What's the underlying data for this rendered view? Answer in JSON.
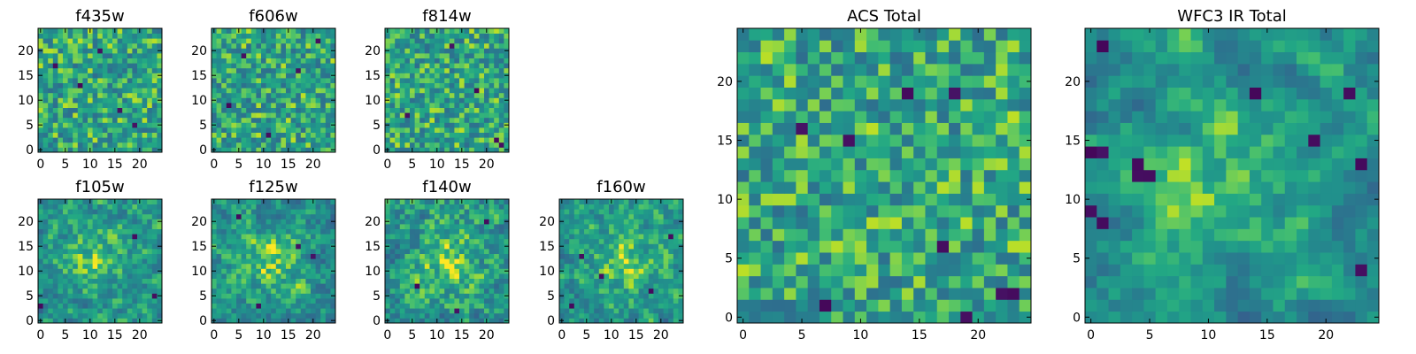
{
  "chart_data": [
    {
      "type": "heatmap",
      "title": "f435w",
      "xticks": [
        "0",
        "5",
        "10",
        "15",
        "20"
      ],
      "yticks": [
        "0",
        "5",
        "10",
        "15",
        "20"
      ],
      "xlim": [
        0,
        24
      ],
      "ylim": [
        0,
        24
      ],
      "colormap": "viridis",
      "seed": 11,
      "smooth": 0,
      "dark_spots": [
        [
          12,
          20
        ],
        [
          16,
          8
        ],
        [
          8,
          13
        ],
        [
          19,
          5
        ],
        [
          3,
          17
        ]
      ]
    },
    {
      "type": "heatmap",
      "title": "f606w",
      "xticks": [
        "0",
        "5",
        "10",
        "15",
        "20"
      ],
      "yticks": [
        "0",
        "5",
        "10",
        "15",
        "20"
      ],
      "xlim": [
        0,
        24
      ],
      "ylim": [
        0,
        24
      ],
      "colormap": "viridis",
      "seed": 23,
      "smooth": 0,
      "dark_spots": [
        [
          3,
          9
        ],
        [
          11,
          3
        ],
        [
          17,
          16
        ],
        [
          21,
          22
        ],
        [
          6,
          19
        ]
      ]
    },
    {
      "type": "heatmap",
      "title": "f814w",
      "xticks": [
        "0",
        "5",
        "10",
        "15",
        "20"
      ],
      "yticks": [
        "0",
        "5",
        "10",
        "15",
        "20"
      ],
      "xlim": [
        0,
        24
      ],
      "ylim": [
        0,
        24
      ],
      "colormap": "viridis",
      "seed": 37,
      "smooth": 0,
      "dark_spots": [
        [
          22,
          2
        ],
        [
          23,
          1
        ],
        [
          13,
          21
        ],
        [
          4,
          7
        ],
        [
          18,
          12
        ]
      ]
    },
    {
      "type": "heatmap",
      "title": "f105w",
      "xticks": [
        "0",
        "5",
        "10",
        "15",
        "20"
      ],
      "yticks": [
        "0",
        "5",
        "10",
        "15",
        "20"
      ],
      "xlim": [
        0,
        24
      ],
      "ylim": [
        0,
        24
      ],
      "colormap": "viridis",
      "seed": 41,
      "smooth": 1,
      "center": [
        11,
        13
      ],
      "dark_spots": [
        [
          23,
          5
        ],
        [
          0,
          3
        ],
        [
          19,
          17
        ]
      ]
    },
    {
      "type": "heatmap",
      "title": "f125w",
      "xticks": [
        "0",
        "5",
        "10",
        "15",
        "20"
      ],
      "yticks": [
        "0",
        "5",
        "10",
        "15",
        "20"
      ],
      "xlim": [
        0,
        24
      ],
      "ylim": [
        0,
        24
      ],
      "colormap": "viridis",
      "seed": 53,
      "smooth": 1,
      "center": [
        12,
        12
      ],
      "dark_spots": [
        [
          17,
          15
        ],
        [
          20,
          13
        ],
        [
          5,
          21
        ],
        [
          9,
          3
        ]
      ]
    },
    {
      "type": "heatmap",
      "title": "f140w",
      "xticks": [
        "0",
        "5",
        "10",
        "15",
        "20"
      ],
      "yticks": [
        "0",
        "5",
        "10",
        "15",
        "20"
      ],
      "xlim": [
        0,
        24
      ],
      "ylim": [
        0,
        24
      ],
      "colormap": "viridis",
      "seed": 67,
      "smooth": 1,
      "center": [
        12,
        12
      ],
      "dark_spots": [
        [
          6,
          7
        ],
        [
          14,
          2
        ],
        [
          20,
          20
        ]
      ]
    },
    {
      "type": "heatmap",
      "title": "f160w",
      "xticks": [
        "0",
        "5",
        "10",
        "15",
        "20"
      ],
      "yticks": [
        "0",
        "5",
        "10",
        "15",
        "20"
      ],
      "xlim": [
        0,
        24
      ],
      "ylim": [
        0,
        24
      ],
      "colormap": "viridis",
      "seed": 79,
      "smooth": 1,
      "center": [
        13,
        12
      ],
      "dark_spots": [
        [
          4,
          13
        ],
        [
          8,
          9
        ],
        [
          18,
          6
        ],
        [
          22,
          17
        ],
        [
          2,
          3
        ]
      ]
    },
    {
      "type": "heatmap",
      "title": "ACS Total",
      "xticks": [
        "0",
        "5",
        "10",
        "15",
        "20"
      ],
      "yticks": [
        "0",
        "5",
        "10",
        "15",
        "20"
      ],
      "xlim": [
        0,
        24
      ],
      "ylim": [
        0,
        24
      ],
      "colormap": "viridis",
      "seed": 97,
      "smooth": 0,
      "dark_spots": [
        [
          5,
          16
        ],
        [
          14,
          19
        ],
        [
          18,
          19
        ],
        [
          17,
          6
        ],
        [
          7,
          1
        ],
        [
          22,
          2
        ],
        [
          23,
          2
        ],
        [
          9,
          15
        ],
        [
          19,
          0
        ]
      ]
    },
    {
      "type": "heatmap",
      "title": "WFC3 IR Total",
      "xticks": [
        "0",
        "5",
        "10",
        "15",
        "20"
      ],
      "yticks": [
        "0",
        "5",
        "10",
        "15",
        "20"
      ],
      "xlim": [
        0,
        24
      ],
      "ylim": [
        0,
        24
      ],
      "colormap": "viridis",
      "seed": 101,
      "smooth": 2,
      "center": [
        12,
        12
      ],
      "dark_spots": [
        [
          0,
          14
        ],
        [
          1,
          14
        ],
        [
          4,
          12
        ],
        [
          4,
          13
        ],
        [
          5,
          12
        ],
        [
          1,
          8
        ],
        [
          0,
          9
        ],
        [
          19,
          15
        ],
        [
          23,
          13
        ],
        [
          22,
          19
        ],
        [
          23,
          4
        ],
        [
          14,
          19
        ],
        [
          1,
          23
        ]
      ]
    }
  ]
}
